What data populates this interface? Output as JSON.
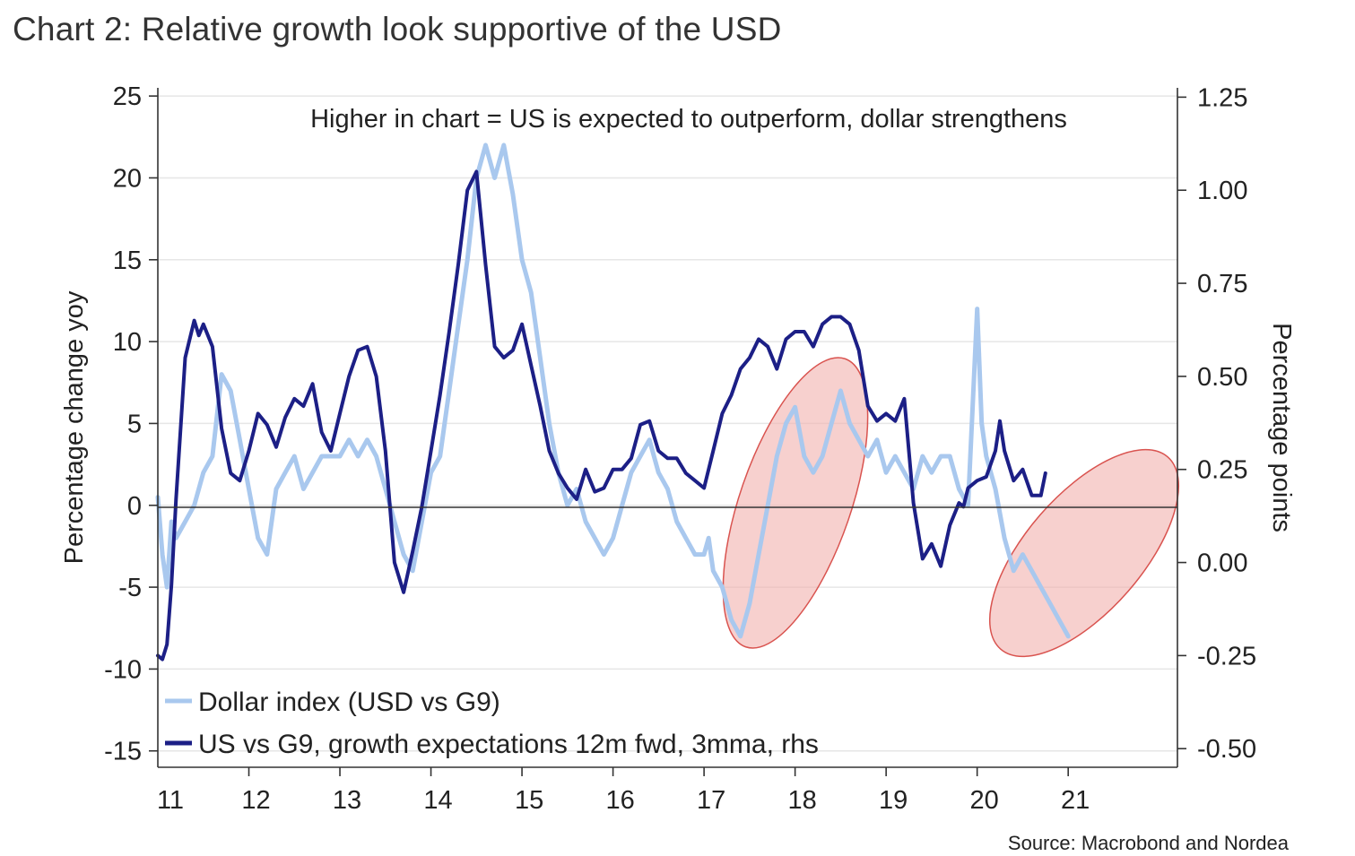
{
  "chart_data": {
    "type": "line",
    "title": "Chart 2: Relative growth look supportive of the USD",
    "annotation": "Higher in chart = US is expected to outperform, dollar strengthens",
    "source": "Source: Macrobond and Nordea",
    "ylabel_left": "Percentage change yoy",
    "ylabel_right": "Percentage points",
    "x_ticks": [
      "11",
      "12",
      "13",
      "14",
      "15",
      "16",
      "17",
      "18",
      "19",
      "20",
      "21"
    ],
    "xlim": [
      2011.0,
      2022.2
    ],
    "ylim_left": [
      -16,
      25.5
    ],
    "ylim_right": [
      -0.55,
      1.275
    ],
    "y_ticks_left": [
      "25",
      "20",
      "15",
      "10",
      "5",
      "0",
      "-5",
      "-10",
      "-15"
    ],
    "y_ticks_right": [
      "1.25",
      "1.00",
      "0.75",
      "0.50",
      "0.25",
      "0.00",
      "-0.25",
      "-0.50"
    ],
    "grid": "horizontal",
    "legend_position": "bottom-left",
    "colors": {
      "dollar": "#a9c8ee",
      "growth": "#1c1f86",
      "ellipse_fill": "#f2b1ae",
      "ellipse_stroke": "#d9534f"
    },
    "series": [
      {
        "name": "Dollar index (USD vs G9)",
        "axis": "left",
        "x": [
          2011.0,
          2011.05,
          2011.1,
          2011.15,
          2011.2,
          2011.3,
          2011.4,
          2011.5,
          2011.6,
          2011.7,
          2011.8,
          2011.9,
          2012.0,
          2012.1,
          2012.2,
          2012.3,
          2012.4,
          2012.5,
          2012.6,
          2012.7,
          2012.8,
          2012.9,
          2013.0,
          2013.1,
          2013.2,
          2013.3,
          2013.4,
          2013.5,
          2013.6,
          2013.7,
          2013.8,
          2013.9,
          2014.0,
          2014.1,
          2014.2,
          2014.3,
          2014.4,
          2014.5,
          2014.6,
          2014.7,
          2014.8,
          2014.9,
          2015.0,
          2015.1,
          2015.2,
          2015.3,
          2015.4,
          2015.5,
          2015.6,
          2015.7,
          2015.8,
          2015.9,
          2016.0,
          2016.1,
          2016.2,
          2016.3,
          2016.4,
          2016.5,
          2016.6,
          2016.7,
          2016.8,
          2016.9,
          2017.0,
          2017.05,
          2017.1,
          2017.2,
          2017.3,
          2017.4,
          2017.5,
          2017.6,
          2017.7,
          2017.8,
          2017.9,
          2018.0,
          2018.1,
          2018.2,
          2018.3,
          2018.4,
          2018.5,
          2018.6,
          2018.7,
          2018.8,
          2018.9,
          2019.0,
          2019.1,
          2019.2,
          2019.3,
          2019.4,
          2019.5,
          2019.6,
          2019.7,
          2019.8,
          2019.9,
          2020.0,
          2020.05,
          2020.1,
          2020.2,
          2020.3,
          2020.4,
          2020.5,
          2020.6,
          2020.7,
          2020.8,
          2020.9,
          2021.0
        ],
        "values": [
          0.5,
          -3,
          -5,
          -1,
          -2,
          -1,
          0,
          2,
          3,
          8,
          7,
          4,
          1,
          -2,
          -3,
          1,
          2,
          3,
          1,
          2,
          3,
          3,
          3,
          4,
          3,
          4,
          3,
          1,
          -1,
          -3,
          -4,
          -1,
          2,
          3,
          7,
          11,
          15,
          20,
          22,
          20,
          22,
          19,
          15,
          13,
          9,
          5,
          2,
          0,
          1,
          -1,
          -2,
          -3,
          -2,
          0,
          2,
          3,
          4,
          2,
          1,
          -1,
          -2,
          -3,
          -3,
          -2,
          -4,
          -5,
          -7,
          -8,
          -6,
          -3,
          0,
          3,
          5,
          6,
          3,
          2,
          3,
          5,
          7,
          5,
          4,
          3,
          4,
          2,
          3,
          2,
          1,
          3,
          2,
          3,
          3,
          1,
          0,
          12,
          5,
          3,
          1,
          -2,
          -4,
          -3,
          -4,
          -5,
          -6,
          -7,
          -8
        ],
        "color": "#a9c8ee"
      },
      {
        "name": "US vs G9, growth expectations 12m fwd, 3mma, rhs",
        "axis": "right",
        "x": [
          2011.0,
          2011.05,
          2011.1,
          2011.15,
          2011.2,
          2011.3,
          2011.4,
          2011.45,
          2011.5,
          2011.6,
          2011.7,
          2011.8,
          2011.9,
          2012.0,
          2012.1,
          2012.2,
          2012.3,
          2012.4,
          2012.5,
          2012.6,
          2012.7,
          2012.8,
          2012.9,
          2013.0,
          2013.1,
          2013.2,
          2013.3,
          2013.4,
          2013.5,
          2013.6,
          2013.7,
          2013.8,
          2013.9,
          2014.0,
          2014.1,
          2014.2,
          2014.3,
          2014.4,
          2014.5,
          2014.6,
          2014.7,
          2014.8,
          2014.9,
          2015.0,
          2015.1,
          2015.2,
          2015.3,
          2015.4,
          2015.5,
          2015.6,
          2015.7,
          2015.8,
          2015.9,
          2016.0,
          2016.1,
          2016.2,
          2016.3,
          2016.4,
          2016.5,
          2016.6,
          2016.7,
          2016.8,
          2016.9,
          2017.0,
          2017.1,
          2017.2,
          2017.3,
          2017.4,
          2017.5,
          2017.6,
          2017.7,
          2017.8,
          2017.9,
          2018.0,
          2018.1,
          2018.2,
          2018.3,
          2018.4,
          2018.5,
          2018.6,
          2018.7,
          2018.8,
          2018.9,
          2019.0,
          2019.1,
          2019.2,
          2019.3,
          2019.4,
          2019.5,
          2019.6,
          2019.7,
          2019.8,
          2019.85,
          2019.9,
          2020.0,
          2020.1,
          2020.2,
          2020.25,
          2020.3,
          2020.4,
          2020.5,
          2020.6,
          2020.7,
          2020.75
        ],
        "values": [
          -0.25,
          -0.26,
          -0.22,
          -0.06,
          0.17,
          0.55,
          0.65,
          0.61,
          0.64,
          0.58,
          0.36,
          0.24,
          0.22,
          0.3,
          0.4,
          0.37,
          0.31,
          0.39,
          0.44,
          0.42,
          0.48,
          0.35,
          0.3,
          0.4,
          0.5,
          0.57,
          0.58,
          0.5,
          0.3,
          0.0,
          -0.08,
          0.03,
          0.15,
          0.3,
          0.45,
          0.62,
          0.8,
          1.0,
          1.05,
          0.8,
          0.58,
          0.55,
          0.57,
          0.64,
          0.53,
          0.42,
          0.3,
          0.24,
          0.2,
          0.17,
          0.25,
          0.19,
          0.2,
          0.25,
          0.25,
          0.28,
          0.37,
          0.38,
          0.3,
          0.28,
          0.28,
          0.24,
          0.22,
          0.2,
          0.3,
          0.4,
          0.45,
          0.52,
          0.55,
          0.6,
          0.58,
          0.52,
          0.6,
          0.62,
          0.62,
          0.58,
          0.64,
          0.66,
          0.66,
          0.64,
          0.57,
          0.42,
          0.38,
          0.4,
          0.38,
          0.44,
          0.16,
          0.01,
          0.05,
          -0.01,
          0.1,
          0.16,
          0.15,
          0.2,
          0.22,
          0.23,
          0.3,
          0.38,
          0.3,
          0.22,
          0.25,
          0.18,
          0.18,
          0.24
        ],
        "color": "#1c1f86"
      }
    ]
  }
}
